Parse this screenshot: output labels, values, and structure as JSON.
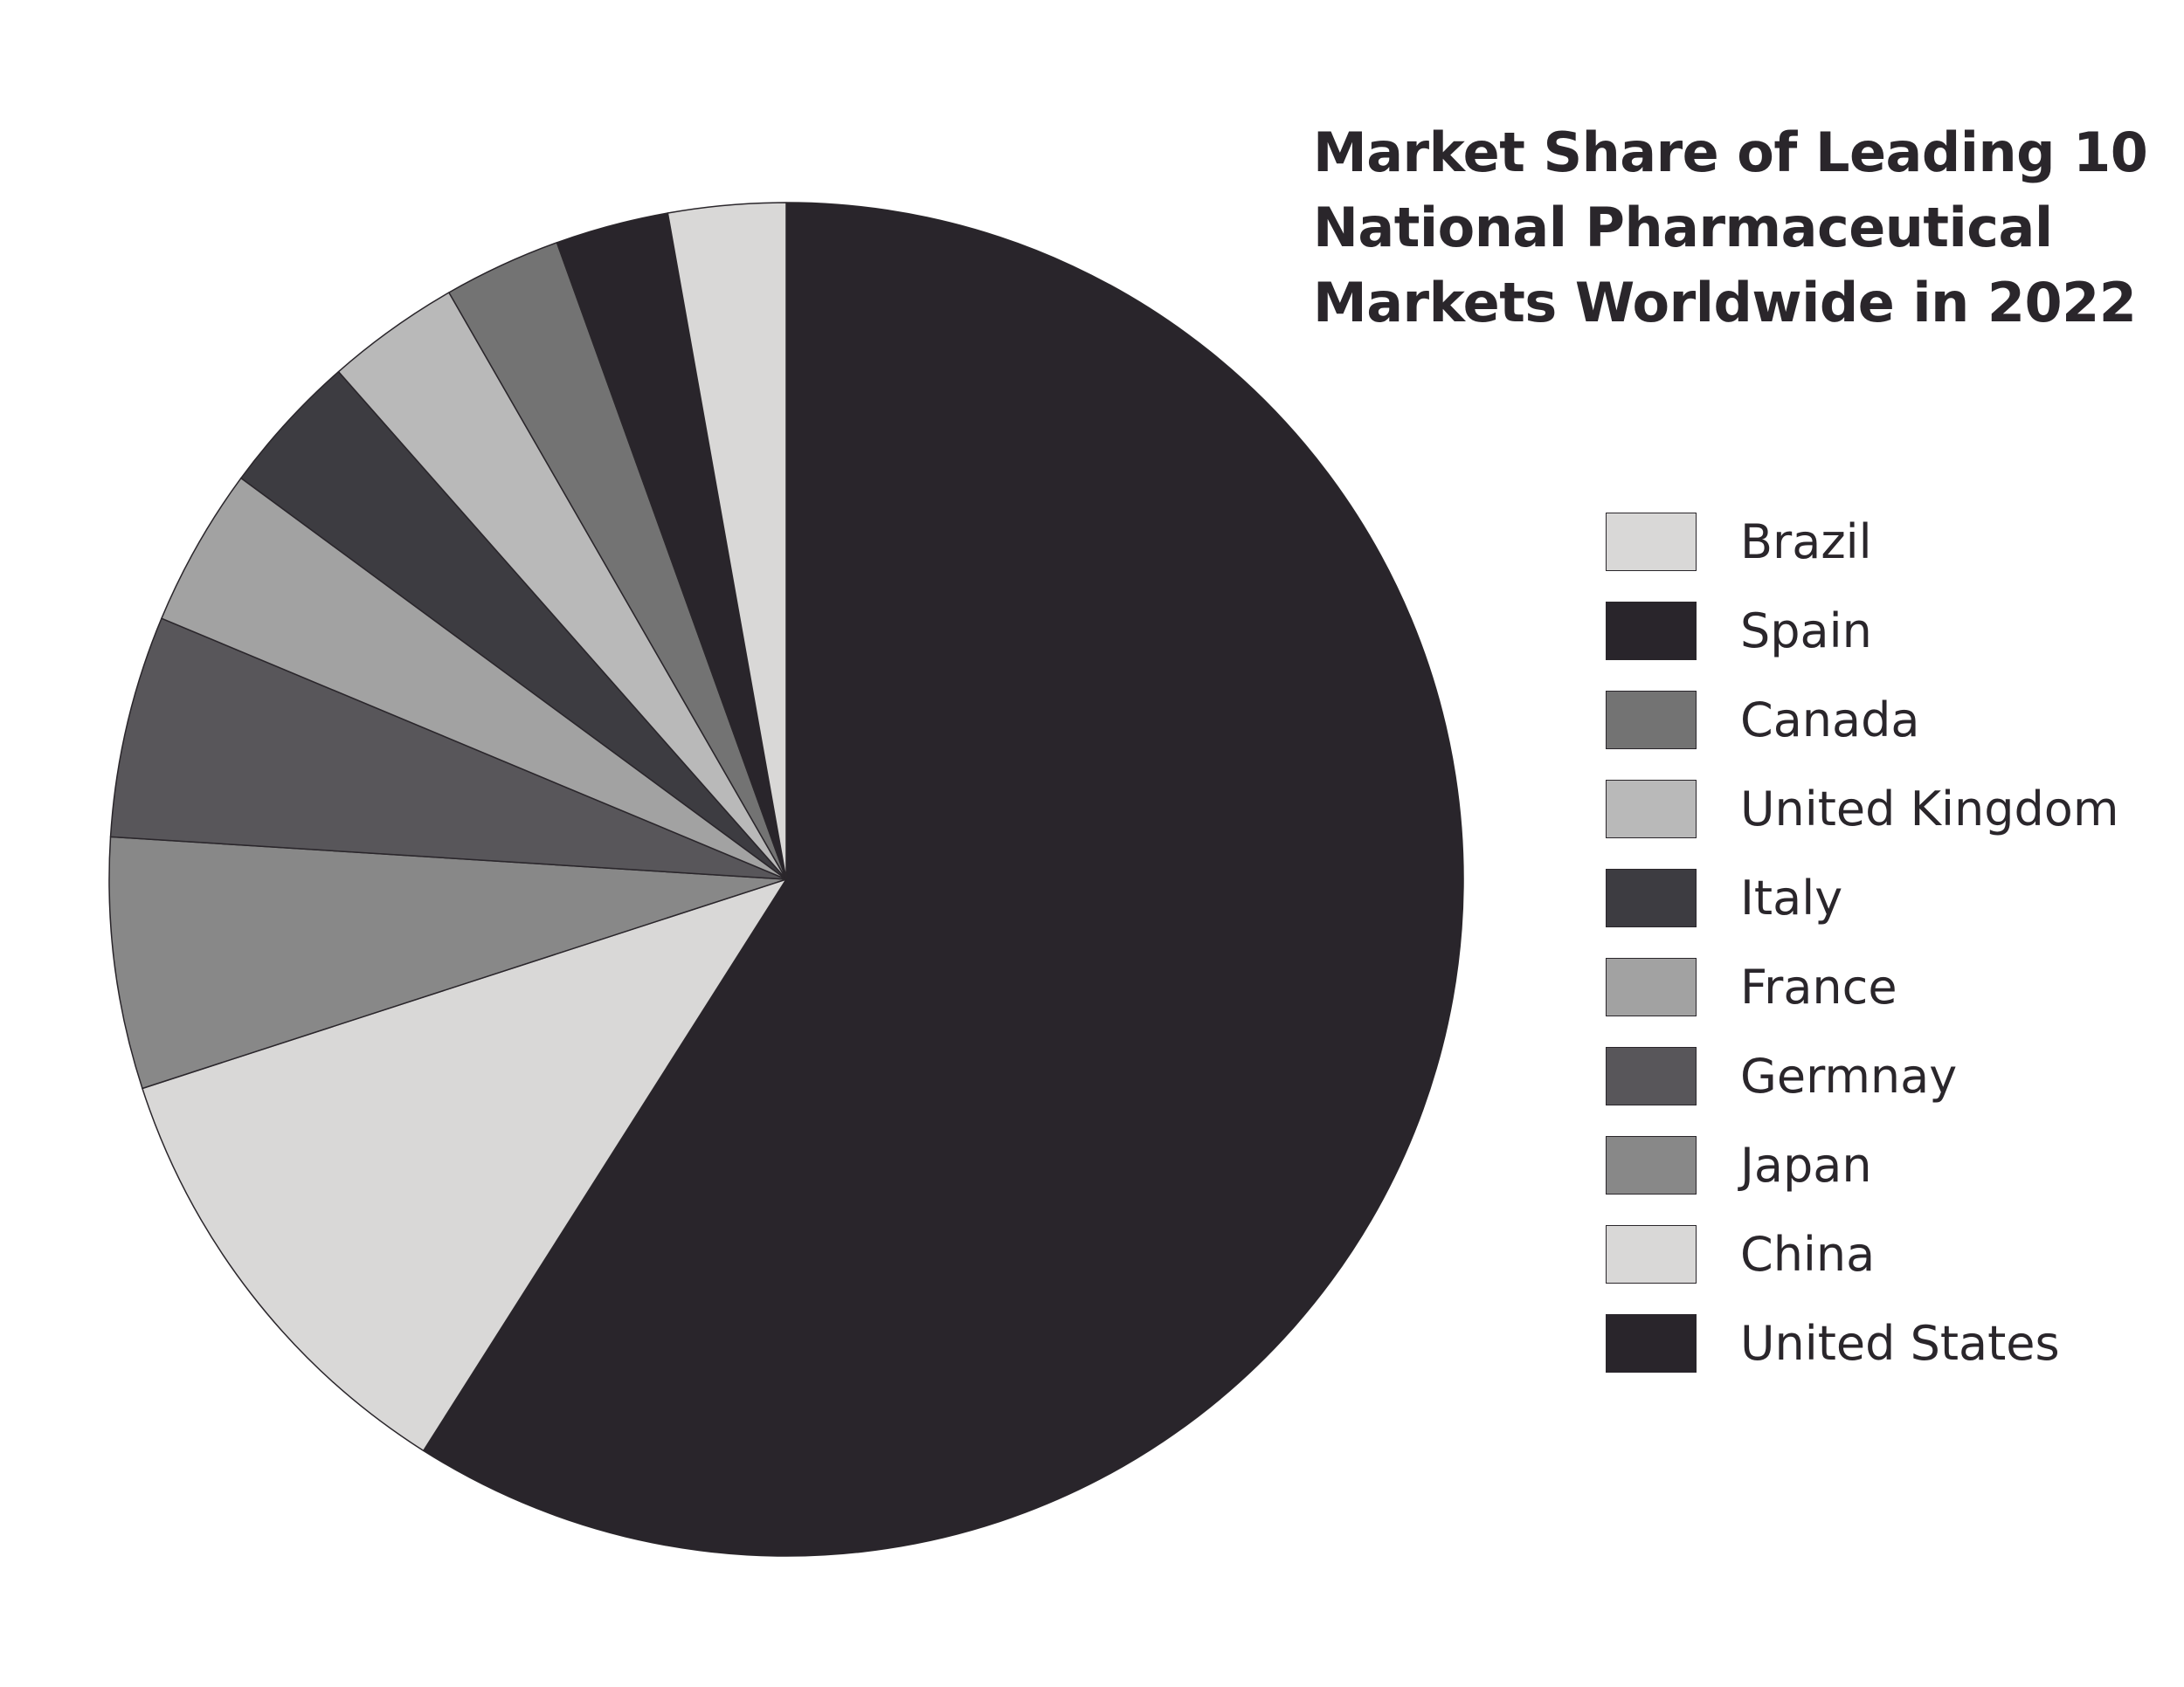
{
  "chart_data": {
    "type": "pie",
    "title_lines": [
      "Market Share of Leading 10",
      "National Pharmaceutical",
      "Markets Worldwide in 2022"
    ],
    "start_angle_deg": 0,
    "direction": "clockwise",
    "slices": [
      {
        "label": "United States",
        "value": 59.0,
        "color": "#29252b"
      },
      {
        "label": "China",
        "value": 11.0,
        "color": "#d9d8d7"
      },
      {
        "label": "Japan",
        "value": 6.0,
        "color": "#888888"
      },
      {
        "label": "Germnay",
        "value": 5.3,
        "color": "#58565a"
      },
      {
        "label": "France",
        "value": 3.8,
        "color": "#a2a2a2"
      },
      {
        "label": "Italy",
        "value": 3.4,
        "color": "#3d3c41"
      },
      {
        "label": "United Kingdom",
        "value": 3.2,
        "color": "#b9b9b9"
      },
      {
        "label": "Canada",
        "value": 2.8,
        "color": "#737373"
      },
      {
        "label": "Spain",
        "value": 2.7,
        "color": "#29252b"
      },
      {
        "label": "Brazil",
        "value": 2.8,
        "color": "#d9d8d7"
      }
    ],
    "legend": {
      "placement": "right",
      "order": [
        "Brazil",
        "Spain",
        "Canada",
        "United Kingdom",
        "Italy",
        "France",
        "Germnay",
        "Japan",
        "China",
        "United States"
      ]
    },
    "stroke_color": "#2a262b"
  }
}
